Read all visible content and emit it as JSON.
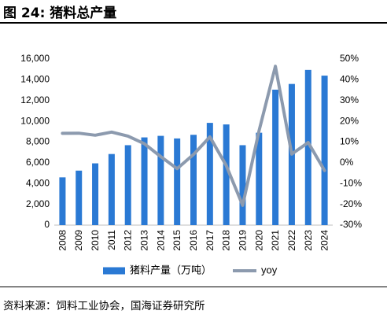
{
  "header": {
    "title": "图 24:  猪料总产量"
  },
  "source": "资料来源：饲料工业协会，国海证券研究所",
  "chart_data": {
    "type": "bar+line",
    "categories": [
      "2008",
      "2009",
      "2010",
      "2011",
      "2012",
      "2013",
      "2014",
      "2015",
      "2016",
      "2017",
      "2018",
      "2019",
      "2020",
      "2021",
      "2022",
      "2023",
      "2024"
    ],
    "series": [
      {
        "name": "猪料产量（万吨）",
        "type": "bar",
        "axis": "left",
        "values": [
          4600,
          5250,
          5950,
          6850,
          7700,
          8450,
          8600,
          8350,
          8700,
          9850,
          9700,
          7700,
          8900,
          13050,
          13600,
          14950,
          14400
        ]
      },
      {
        "name": "yoy",
        "type": "line",
        "axis": "right",
        "values": [
          14.2,
          14.3,
          13.3,
          14.8,
          12.9,
          9.2,
          3.0,
          -2.8,
          4.0,
          12.5,
          -1.3,
          -20.5,
          15.4,
          46.5,
          4.2,
          9.8,
          -3.7
        ]
      }
    ],
    "y_left": {
      "min": 0,
      "max": 16000,
      "ticks": [
        "0",
        "2,000",
        "4,000",
        "6,000",
        "8,000",
        "10,000",
        "12,000",
        "14,000",
        "16,000"
      ]
    },
    "y_right": {
      "min": -30,
      "max": 50,
      "ticks": [
        "-30%",
        "-20%",
        "-10%",
        "0%",
        "10%",
        "20%",
        "30%",
        "40%",
        "50%"
      ]
    },
    "grid": false,
    "legend_position": "bottom",
    "colors": {
      "bar": "#2a79d4",
      "line": "#8c9aae",
      "axis": "#bfbfbf"
    }
  }
}
